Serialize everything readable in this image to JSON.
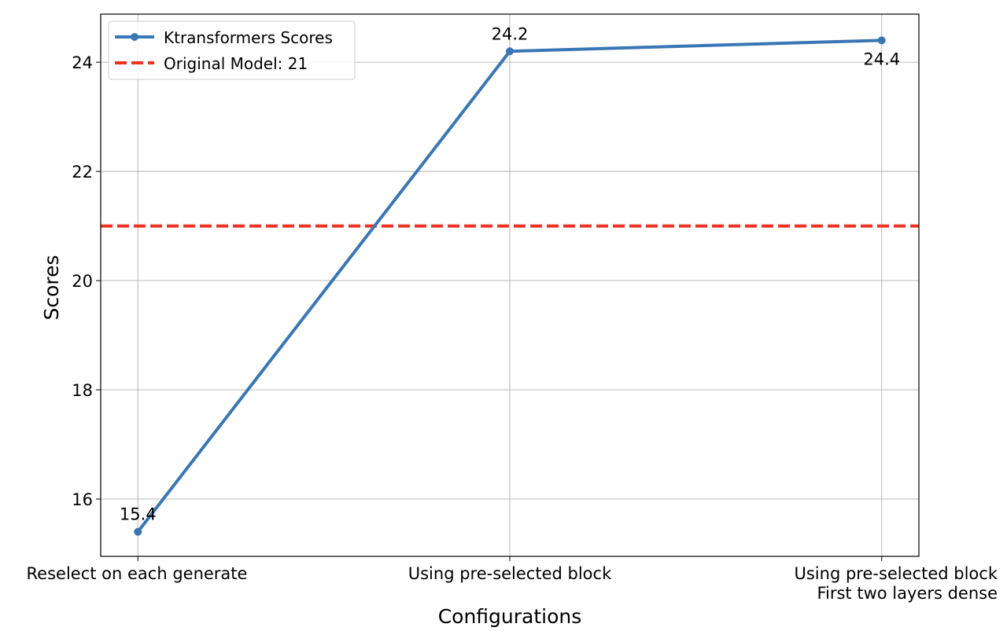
{
  "chart_data": {
    "type": "line",
    "title": "",
    "xlabel": "Configurations",
    "ylabel": "Scores",
    "categories": [
      "Reselect on each generate",
      "Using pre-selected block",
      "Using pre-selected block\nFirst two layers dense"
    ],
    "series": [
      {
        "name": "Ktransformers Scores",
        "values": [
          15.4,
          24.2,
          24.4
        ],
        "color": "#3a76b4",
        "data_labels": [
          "15.4",
          "24.2",
          "24.4"
        ]
      }
    ],
    "reference_lines": [
      {
        "name": "Original Model: 21",
        "y": 21,
        "color": "#ee3224",
        "style": "dashed"
      }
    ],
    "yticks": [
      16,
      18,
      20,
      22,
      24
    ],
    "ylim": [
      14.95,
      24.88
    ],
    "xlim": [
      -0.1,
      2.1
    ],
    "grid": true,
    "legend_position": "top-left"
  }
}
